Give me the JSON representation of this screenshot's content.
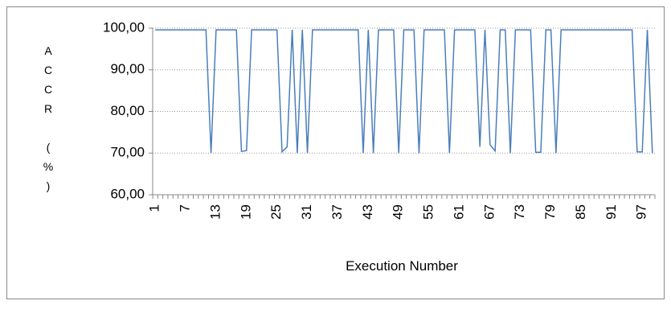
{
  "chart_data": {
    "type": "line",
    "x_label": "Execution Number",
    "y_label": "ACCR (%)",
    "categories": [
      "1",
      null,
      null,
      null,
      null,
      null,
      "7",
      null,
      null,
      null,
      null,
      null,
      "13",
      null,
      null,
      null,
      null,
      null,
      "19",
      null,
      null,
      null,
      null,
      null,
      "25",
      null,
      null,
      null,
      null,
      null,
      "31",
      null,
      null,
      null,
      null,
      null,
      "37",
      null,
      null,
      null,
      null,
      null,
      "43",
      null,
      null,
      null,
      null,
      null,
      "49",
      null,
      null,
      null,
      null,
      null,
      "55",
      null,
      null,
      null,
      null,
      null,
      "61",
      null,
      null,
      null,
      null,
      null,
      "67",
      null,
      null,
      null,
      null,
      null,
      "73",
      null,
      null,
      null,
      null,
      null,
      "79",
      null,
      null,
      null,
      null,
      null,
      "85",
      null,
      null,
      null,
      null,
      null,
      "91",
      null,
      null,
      null,
      null,
      null,
      "97",
      null,
      null
    ],
    "series": [
      {
        "name": "ACCR",
        "color": "#4a7ebb",
        "values": [
          99.6,
          99.6,
          99.6,
          99.6,
          99.6,
          99.6,
          99.6,
          99.6,
          99.6,
          99.6,
          99.6,
          70,
          99.6,
          99.6,
          99.6,
          99.6,
          99.6,
          70.4,
          70.6,
          99.6,
          99.6,
          99.6,
          99.6,
          99.6,
          99.6,
          70.3,
          71.5,
          99.6,
          70,
          99.6,
          70,
          99.6,
          99.6,
          99.6,
          99.6,
          99.6,
          99.6,
          99.6,
          99.6,
          99.6,
          99.6,
          70,
          99.6,
          70,
          99.6,
          99.6,
          99.6,
          99.6,
          70,
          99.6,
          99.6,
          99.6,
          70,
          99.6,
          99.6,
          99.6,
          99.6,
          99.6,
          70,
          99.6,
          99.6,
          99.6,
          99.6,
          99.6,
          71.5,
          99.6,
          72,
          70.5,
          99.6,
          99.6,
          70,
          99.6,
          99.6,
          99.6,
          99.6,
          70.2,
          70.2,
          99.6,
          99.6,
          70,
          99.6,
          99.6,
          99.6,
          99.6,
          99.6,
          99.6,
          99.6,
          99.6,
          99.6,
          99.6,
          99.6,
          99.6,
          99.6,
          99.6,
          99.6,
          70.3,
          70.3,
          99.6,
          70
        ]
      }
    ],
    "ylim": [
      60,
      100
    ],
    "yticks": [
      {
        "value": 60,
        "label": "60,00"
      },
      {
        "value": 70,
        "label": "70,00"
      },
      {
        "value": 80,
        "label": "80,00"
      },
      {
        "value": 90,
        "label": "90,00"
      },
      {
        "value": 100,
        "label": "100,00"
      }
    ],
    "grid": true
  }
}
